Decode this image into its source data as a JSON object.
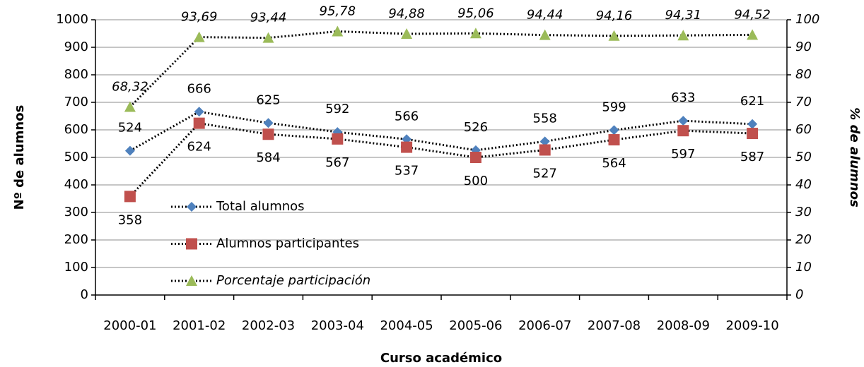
{
  "chart_data": {
    "type": "line",
    "x_label": "Curso académico",
    "y_label": "Nº de alumnos",
    "y2_label": "% de alumnos",
    "categories": [
      "2000-01",
      "2001-02",
      "2002-03",
      "2003-04",
      "2004-05",
      "2005-06",
      "2006-07",
      "2007-08",
      "2008-09",
      "2009-10"
    ],
    "series": [
      {
        "name": "Total alumnos",
        "color": "#4f81bd",
        "marker": "diamond",
        "values": [
          524,
          666,
          625,
          592,
          566,
          526,
          558,
          599,
          633,
          621
        ]
      },
      {
        "name": "Alumnos participantes",
        "color": "#c0504d",
        "marker": "square",
        "values": [
          358,
          624,
          584,
          567,
          537,
          500,
          527,
          564,
          597,
          587
        ]
      },
      {
        "name": "Porcentaje participación",
        "color": "#9bbb59",
        "marker": "triangle",
        "axis": "y2",
        "values": [
          68.32,
          93.69,
          93.44,
          95.78,
          94.88,
          95.06,
          94.44,
          94.16,
          94.31,
          94.52
        ],
        "value_labels": [
          "68,32",
          "93,69",
          "93,44",
          "95,78",
          "94,88",
          "95,06",
          "94,44",
          "94,16",
          "94,31",
          "94,52"
        ]
      }
    ],
    "ylim": [
      0,
      1000
    ],
    "yticks": [
      0,
      100,
      200,
      300,
      400,
      500,
      600,
      700,
      800,
      900,
      1000
    ],
    "y2lim": [
      0,
      100
    ],
    "y2ticks": [
      0,
      10,
      20,
      30,
      40,
      50,
      60,
      70,
      80,
      90,
      100
    ],
    "grid": true,
    "legend": "lower left"
  }
}
